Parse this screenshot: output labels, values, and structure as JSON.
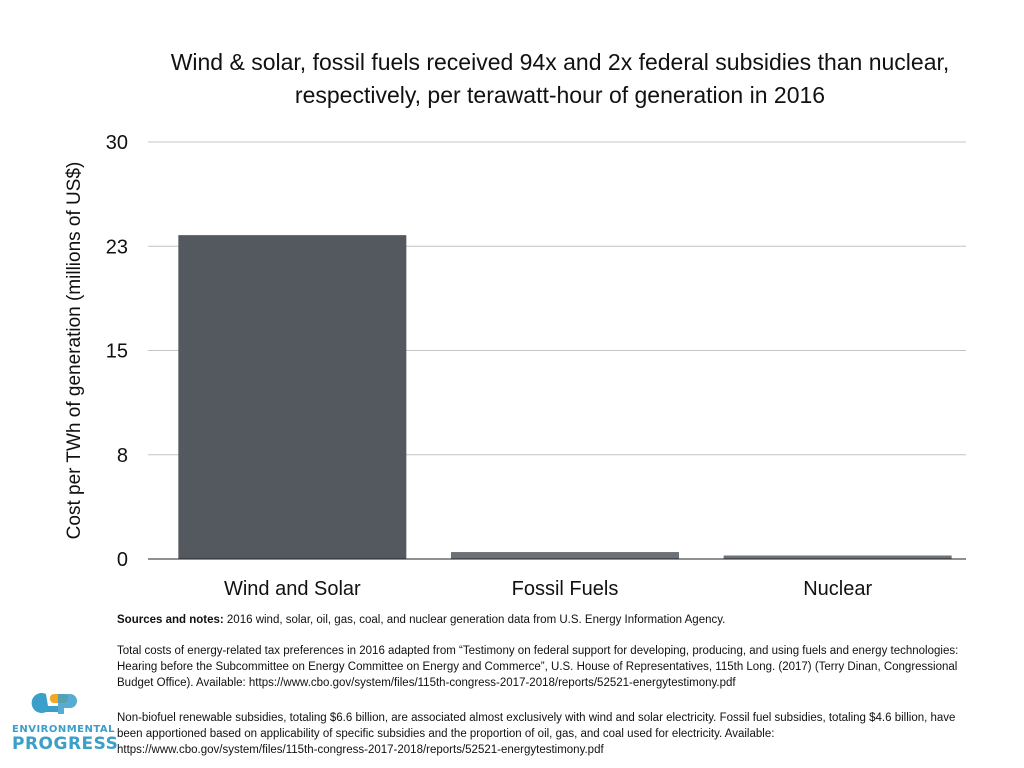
{
  "chart_data": {
    "type": "bar",
    "title": [
      "Wind & solar, fossil fuels received 94x and 2x federal subsidies than nuclear,",
      "respectively, per terawatt-hour of generation in 2016"
    ],
    "ylabel": "Cost per TWh of generation (millions of US$)",
    "xlabel": "",
    "categories": [
      "Wind and Solar",
      "Fossil Fuels",
      "Nuclear"
    ],
    "values": [
      23.3,
      0.5,
      0.25
    ],
    "ylim": [
      0,
      30
    ],
    "yticks": [
      0,
      7.5,
      15,
      22.5,
      30
    ],
    "ytick_labels": [
      "0",
      "8",
      "15",
      "23",
      "30"
    ],
    "grid": true,
    "colors": {
      "bar1": "#54595f",
      "bar2": "#6c7177",
      "bar3": "#6c7177",
      "grid": "#c4c4c4",
      "axis": "#222222"
    }
  },
  "notes": {
    "sources_label": "Sources and notes:",
    "sources_text": " 2016 wind, solar, oil, gas, coal, and nuclear generation data from U.S. Energy Information Agency.",
    "note2": "Total costs of energy-related tax preferences in 2016 adapted from “Testimony on federal support for developing, producing, and using fuels and energy technologies: Hearing before the Subcommittee on Energy Committee on Energy and Commerce”, U.S. House of Representatives, 115th Long. (2017) (Terry Dinan, Congressional Budget Office). Available: https://www.cbo.gov/system/files/115th-congress-2017-2018/reports/52521-energytestimony.pdf",
    "note3": "Non-biofuel renewable subsidies, totaling $6.6 billion, are associated almost exclusively with wind and solar electricity. Fossil fuel subsidies, totaling $4.6 billion, have been apportioned based on applicability of specific subsidies and the proportion of oil, gas, and coal used for electricity. Available: https://www.cbo.gov/system/files/115th-congress-2017-2018/reports/52521-energytestimony.pdf"
  },
  "logo": {
    "line1": "ENVIRONMENTAL",
    "line2": "PROGRESS",
    "colors": {
      "blue": "#3a9fc9",
      "orange": "#f5a623"
    }
  }
}
